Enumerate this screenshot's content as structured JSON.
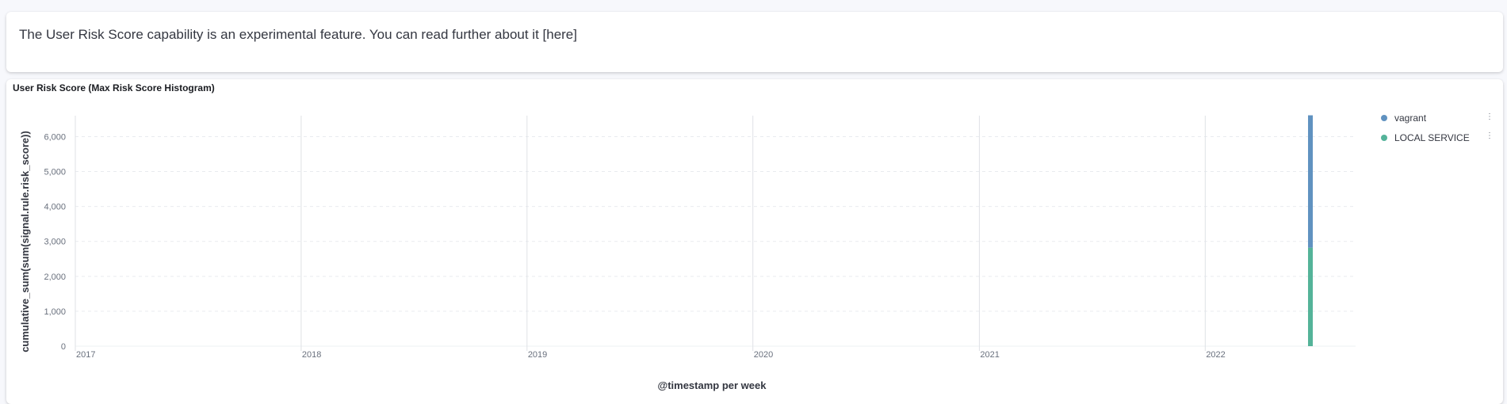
{
  "notice": {
    "text": "The User Risk Score capability is an experimental feature. You can read further about it [here]"
  },
  "panel": {
    "title": "User Risk Score (Max Risk Score Histogram)"
  },
  "chart_data": {
    "type": "bar",
    "stacked": true,
    "xlabel": "@timestamp per week",
    "ylabel": "cumulative_sum(sum(signal.rule.risk_score))",
    "x_ticks": [
      "2017",
      "2018",
      "2019",
      "2020",
      "2021",
      "2022"
    ],
    "y_ticks": [
      "0",
      "1,000",
      "2,000",
      "3,000",
      "4,000",
      "5,000",
      "6,000"
    ],
    "ylim": [
      0,
      6600
    ],
    "xlim": [
      "2017-01-01",
      "2022-09-01"
    ],
    "grid": true,
    "legend_position": "right",
    "categories": [
      "2022-06-20"
    ],
    "series": [
      {
        "name": "LOCAL SERVICE",
        "values": [
          2820
        ],
        "color": "#54b399"
      },
      {
        "name": "vagrant",
        "values": [
          3790
        ],
        "color": "#6092c0"
      }
    ],
    "legend": [
      {
        "name": "vagrant",
        "color": "#6092c0"
      },
      {
        "name": "LOCAL SERVICE",
        "color": "#54b399"
      }
    ]
  }
}
